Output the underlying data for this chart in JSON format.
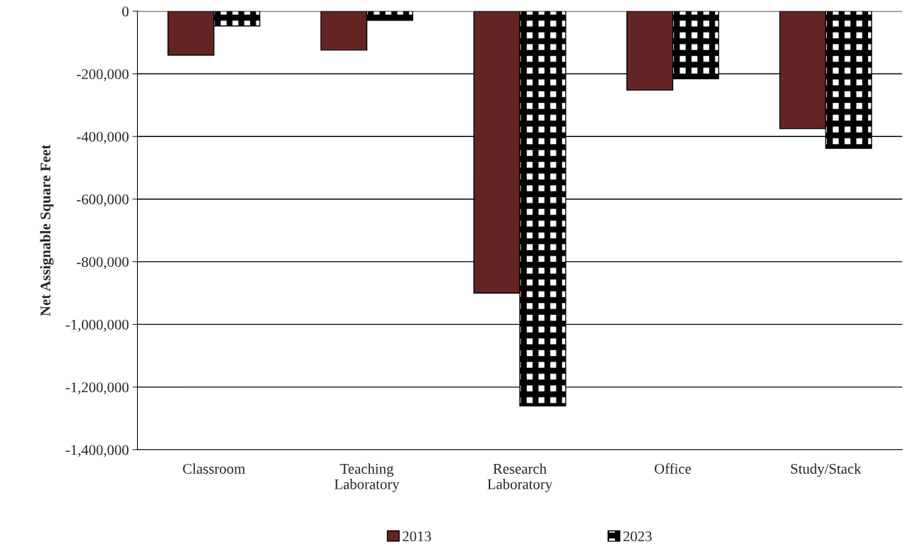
{
  "chart_data": {
    "type": "bar",
    "ylabel": "Net Assignable Square Feet",
    "categories": [
      "Classroom",
      "Teaching\nLaboratory",
      "Research\nLaboratory",
      "Office",
      "Study/Stack"
    ],
    "series": [
      {
        "name": "2013",
        "color": "#632523",
        "values": [
          -140000,
          -124000,
          -900000,
          -252000,
          -375000
        ]
      },
      {
        "name": "2023",
        "color": "#000000",
        "values": [
          -47000,
          -29000,
          -1260000,
          -216000,
          -438000
        ]
      }
    ],
    "ylim": [
      -1400000,
      0
    ],
    "yticks": [
      {
        "value": -1400000,
        "label": "-1,400,000"
      },
      {
        "value": -1200000,
        "label": "-1,200,000"
      },
      {
        "value": -1000000,
        "label": "-1,000,000"
      },
      {
        "value": -800000,
        "label": "-800,000"
      },
      {
        "value": -600000,
        "label": "-600,000"
      },
      {
        "value": -400000,
        "label": "-400,000"
      },
      {
        "value": -200000,
        "label": "-200,000"
      },
      0
    ],
    "grid": "y",
    "legend": "bottom"
  }
}
